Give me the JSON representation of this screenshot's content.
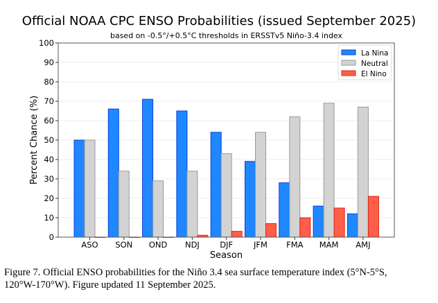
{
  "chart_data": {
    "type": "bar",
    "title": "Official NOAA CPC ENSO Probabilities (issued September 2025)",
    "subtitle": "based on -0.5°/+0.5°C thresholds in ERSSTv5 Niño-3.4 index",
    "xlabel": "Season",
    "ylabel": "Percent Chance (%)",
    "ylim": [
      0,
      100
    ],
    "yticks": [
      0,
      10,
      20,
      30,
      40,
      50,
      60,
      70,
      80,
      90,
      100
    ],
    "grid": "horizontal",
    "legend_position": "top-right",
    "categories": [
      "ASO",
      "SON",
      "OND",
      "NDJ",
      "DJF",
      "JFM",
      "FMA",
      "MAM",
      "AMJ"
    ],
    "series": [
      {
        "name": "La Nina",
        "color": "#1f87ff",
        "edge": "#0b3fd6",
        "values": [
          50,
          66,
          71,
          65,
          54,
          39,
          28,
          16,
          12
        ]
      },
      {
        "name": "Neutral",
        "color": "#d3d3d3",
        "edge": "#999999",
        "values": [
          50,
          34,
          29,
          34,
          43,
          54,
          62,
          69,
          67
        ]
      },
      {
        "name": "El Nino",
        "color": "#ff5e48",
        "edge": "#d9271a",
        "values": [
          0,
          0,
          0,
          1,
          3,
          7,
          10,
          15,
          21
        ]
      }
    ]
  },
  "caption": {
    "line1": "Figure 7. Official ENSO probabilities for the Niño 3.4 sea surface temperature index (5°N-5°S,",
    "line2": "120°W-170°W).  Figure updated 11 September 2025."
  }
}
